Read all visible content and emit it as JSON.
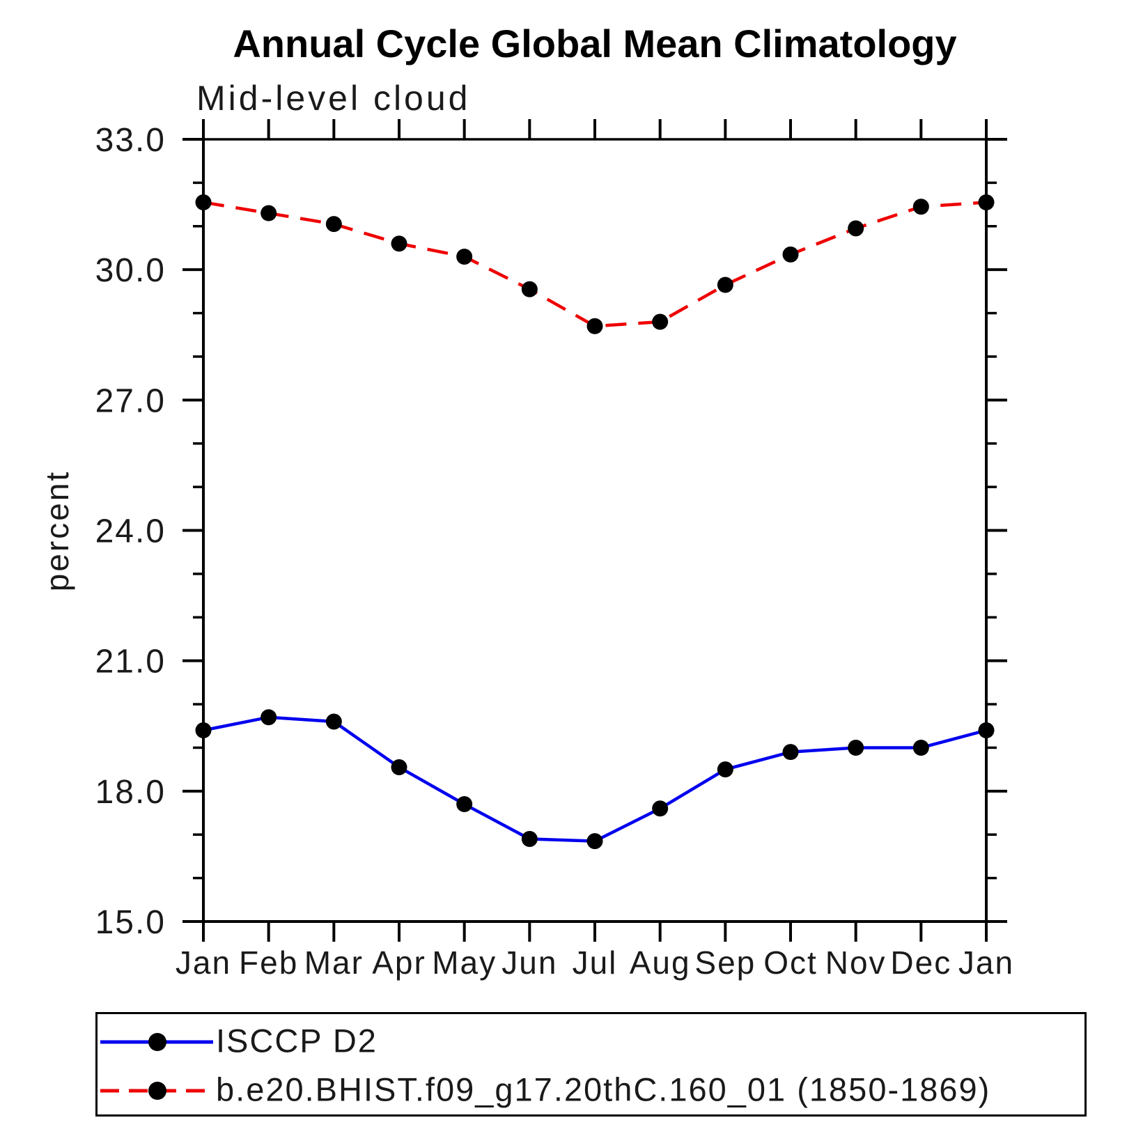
{
  "chart_data": {
    "type": "line",
    "title": "Annual Cycle Global Mean Climatology",
    "subtitle": "Mid-level cloud",
    "ylabel": "percent",
    "xlabel": "",
    "categories": [
      "Jan",
      "Feb",
      "Mar",
      "Apr",
      "May",
      "Jun",
      "Jul",
      "Aug",
      "Sep",
      "Oct",
      "Nov",
      "Dec",
      "Jan"
    ],
    "ylim": [
      15.0,
      33.0
    ],
    "y_major_ticks": [
      15.0,
      18.0,
      21.0,
      24.0,
      27.0,
      30.0,
      33.0
    ],
    "y_minor_tick_step": 1.0,
    "grid": false,
    "legend_position": "bottom",
    "series": [
      {
        "name": "ISCCP D2",
        "color": "#0000ee",
        "line_style": "solid",
        "marker": "circle",
        "marker_color": "#000000",
        "values": [
          19.4,
          19.7,
          19.6,
          18.55,
          17.7,
          16.9,
          16.85,
          17.6,
          18.5,
          18.9,
          19.0,
          19.0,
          19.4
        ]
      },
      {
        "name": "b.e20.BHIST.f09_g17.20thC.160_01 (1850-1869)",
        "color": "#ee0000",
        "line_style": "dashed",
        "marker": "circle",
        "marker_color": "#000000",
        "values": [
          31.55,
          31.3,
          31.05,
          30.6,
          30.3,
          29.55,
          28.7,
          28.8,
          29.65,
          30.35,
          30.95,
          31.45,
          31.55
        ]
      }
    ]
  }
}
